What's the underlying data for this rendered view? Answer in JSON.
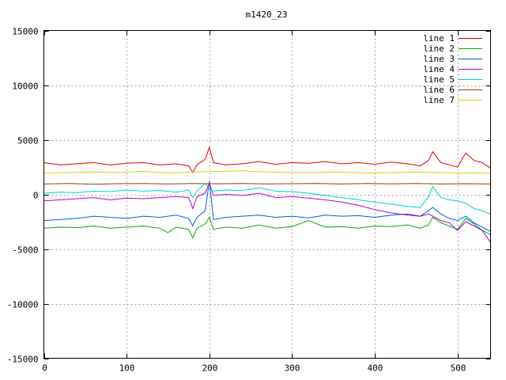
{
  "chart_data": {
    "type": "line",
    "title": "m1420_23",
    "xlabel": "",
    "ylabel": "",
    "xlim": [
      0,
      540
    ],
    "ylim": [
      -15000,
      15000
    ],
    "xticks": [
      0,
      100,
      200,
      300,
      400,
      500
    ],
    "yticks": [
      -15000,
      -10000,
      -5000,
      0,
      5000,
      10000,
      15000
    ],
    "grid": true,
    "legend_position": "top-right",
    "series": [
      {
        "name": "line 1",
        "color": "#e00000",
        "x": [
          0,
          20,
          40,
          60,
          80,
          100,
          120,
          140,
          160,
          175,
          180,
          185,
          195,
          200,
          205,
          220,
          240,
          260,
          280,
          300,
          320,
          340,
          360,
          380,
          400,
          420,
          440,
          455,
          465,
          470,
          480,
          490,
          500,
          510,
          520,
          530,
          540
        ],
        "y": [
          2900,
          2700,
          2800,
          2900,
          2700,
          2850,
          2900,
          2700,
          2800,
          2600,
          2000,
          2700,
          3200,
          4300,
          2900,
          2700,
          2800,
          3000,
          2750,
          2900,
          2850,
          3000,
          2800,
          2900,
          2750,
          2950,
          2800,
          2600,
          3100,
          3900,
          2900,
          2700,
          2500,
          3800,
          3100,
          2900,
          2400
        ]
      },
      {
        "name": "line 2",
        "color": "#00b000",
        "x": [
          0,
          20,
          40,
          60,
          80,
          100,
          120,
          140,
          150,
          160,
          175,
          180,
          185,
          195,
          200,
          205,
          220,
          240,
          260,
          280,
          300,
          320,
          340,
          360,
          380,
          400,
          420,
          440,
          455,
          465,
          470,
          480,
          490,
          500,
          510,
          520,
          530,
          540
        ],
        "y": [
          -3100,
          -3000,
          -3050,
          -2900,
          -3100,
          -3000,
          -2900,
          -3100,
          -3500,
          -3000,
          -3200,
          -4000,
          -3100,
          -2700,
          -2100,
          -3200,
          -3000,
          -3100,
          -2800,
          -3100,
          -2950,
          -2400,
          -3000,
          -2950,
          -3100,
          -2900,
          -2950,
          -2800,
          -3100,
          -2800,
          -2100,
          -2600,
          -2900,
          -3200,
          -2200,
          -2700,
          -3300,
          -3700
        ]
      },
      {
        "name": "line 3",
        "color": "#0060e0",
        "x": [
          0,
          20,
          40,
          60,
          80,
          100,
          120,
          140,
          160,
          175,
          180,
          185,
          195,
          200,
          205,
          220,
          240,
          260,
          280,
          300,
          320,
          340,
          360,
          380,
          400,
          420,
          440,
          455,
          465,
          470,
          480,
          490,
          500,
          510,
          520,
          530,
          540
        ],
        "y": [
          -2400,
          -2300,
          -2200,
          -2000,
          -2100,
          -2200,
          -2000,
          -2100,
          -1900,
          -2200,
          -2900,
          -2100,
          -1500,
          1200,
          -2300,
          -2100,
          -2000,
          -1900,
          -2100,
          -2000,
          -2150,
          -1900,
          -2000,
          -1950,
          -2100,
          -1900,
          -1800,
          -2000,
          -1500,
          -1200,
          -1800,
          -2200,
          -2400,
          -2000,
          -2600,
          -3000,
          -3400
        ]
      },
      {
        "name": "line 4",
        "color": "#b000d0",
        "x": [
          0,
          20,
          40,
          60,
          80,
          100,
          120,
          140,
          160,
          175,
          180,
          185,
          195,
          200,
          205,
          220,
          240,
          260,
          280,
          300,
          320,
          340,
          360,
          380,
          400,
          420,
          440,
          455,
          465,
          470,
          480,
          490,
          500,
          510,
          520,
          530,
          540
        ],
        "y": [
          -600,
          -500,
          -400,
          -300,
          -500,
          -350,
          -400,
          -300,
          -200,
          -300,
          -1300,
          -200,
          100,
          1000,
          -100,
          0,
          -100,
          100,
          -300,
          -200,
          -350,
          -500,
          -700,
          -1000,
          -1400,
          -1700,
          -1900,
          -2000,
          -1800,
          -2000,
          -2400,
          -2600,
          -3300,
          -2500,
          -2900,
          -3300,
          -4400
        ]
      },
      {
        "name": "line 5",
        "color": "#00d0d0",
        "x": [
          0,
          20,
          40,
          60,
          80,
          100,
          120,
          140,
          160,
          175,
          180,
          185,
          195,
          200,
          205,
          220,
          240,
          260,
          280,
          300,
          320,
          340,
          360,
          380,
          400,
          420,
          440,
          455,
          465,
          470,
          480,
          490,
          500,
          510,
          520,
          530,
          540
        ],
        "y": [
          100,
          200,
          150,
          300,
          250,
          400,
          300,
          350,
          200,
          400,
          -300,
          300,
          1000,
          500,
          300,
          400,
          350,
          600,
          300,
          250,
          100,
          -100,
          -300,
          -500,
          -700,
          -900,
          -1100,
          -1200,
          -200,
          700,
          -300,
          -500,
          -600,
          -800,
          -1300,
          -1500,
          -1800
        ]
      },
      {
        "name": "line 6",
        "color": "#a04000",
        "x": [
          0,
          30,
          60,
          90,
          120,
          150,
          180,
          210,
          240,
          270,
          300,
          330,
          360,
          390,
          420,
          450,
          480,
          510,
          540
        ],
        "y": [
          950,
          1000,
          920,
          980,
          1000,
          950,
          1000,
          970,
          1000,
          950,
          980,
          1000,
          950,
          990,
          960,
          1000,
          950,
          980,
          950
        ]
      },
      {
        "name": "line 7",
        "color": "#e0d000",
        "x": [
          0,
          30,
          60,
          90,
          120,
          150,
          180,
          210,
          240,
          270,
          300,
          330,
          360,
          390,
          420,
          450,
          480,
          510,
          540
        ],
        "y": [
          1950,
          2000,
          2050,
          2000,
          2100,
          1950,
          2050,
          2100,
          2150,
          2050,
          2000,
          2000,
          2050,
          1950,
          2000,
          2050,
          2000,
          1950,
          1950
        ]
      }
    ]
  }
}
